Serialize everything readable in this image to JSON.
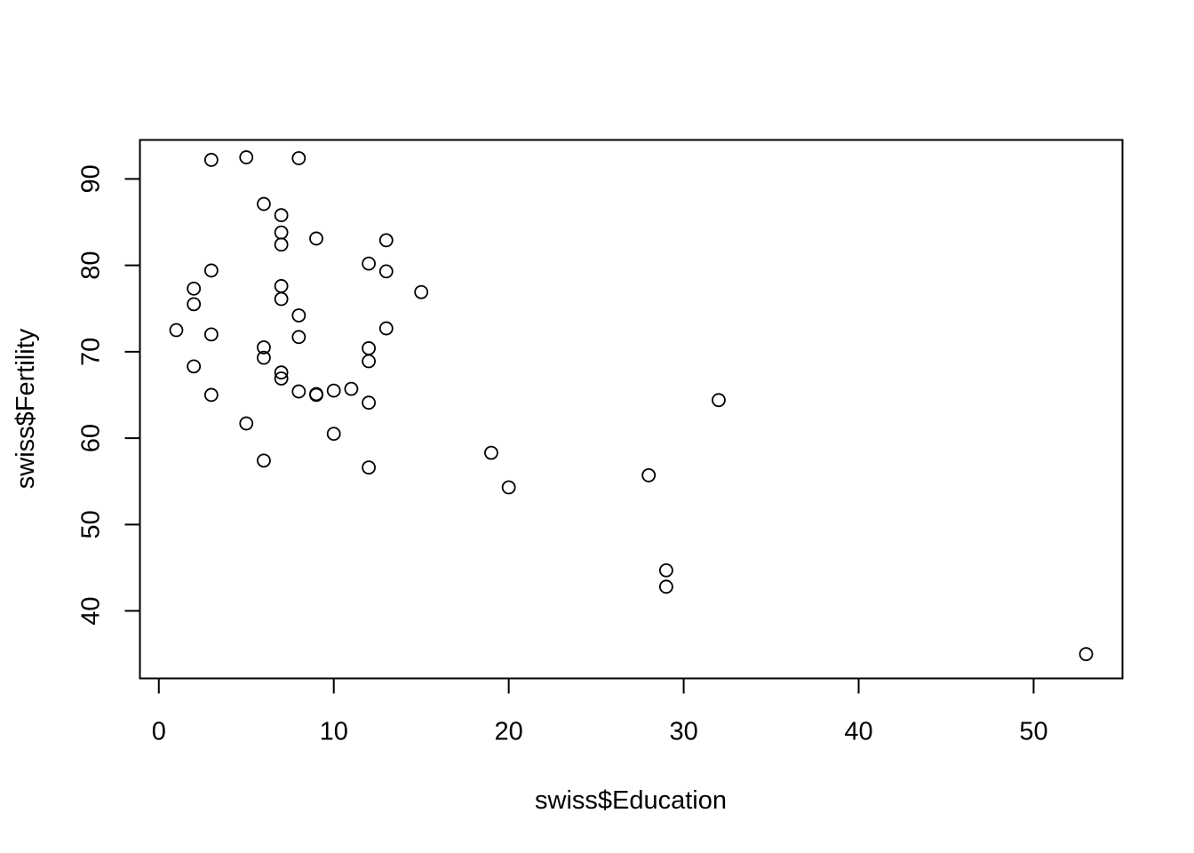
{
  "chart_data": {
    "type": "scatter",
    "title": "",
    "xlabel": "swiss$Education",
    "ylabel": "swiss$Fertility",
    "xlim": [
      -1.08,
      55.08
    ],
    "ylim": [
      32.19,
      94.51
    ],
    "x_ticks": [
      0,
      10,
      20,
      30,
      40,
      50
    ],
    "y_ticks": [
      40,
      50,
      60,
      70,
      80,
      90
    ],
    "grid": false,
    "legend": "none",
    "marker": "open-circle",
    "color": "#000000",
    "points": [
      {
        "x": 12,
        "y": 80.2
      },
      {
        "x": 9,
        "y": 83.1
      },
      {
        "x": 5,
        "y": 92.5
      },
      {
        "x": 7,
        "y": 85.8
      },
      {
        "x": 15,
        "y": 76.9
      },
      {
        "x": 7,
        "y": 76.1
      },
      {
        "x": 7,
        "y": 83.8
      },
      {
        "x": 8,
        "y": 92.4
      },
      {
        "x": 7,
        "y": 82.4
      },
      {
        "x": 13,
        "y": 82.9
      },
      {
        "x": 6,
        "y": 87.1
      },
      {
        "x": 12,
        "y": 64.1
      },
      {
        "x": 7,
        "y": 66.9
      },
      {
        "x": 12,
        "y": 68.9
      },
      {
        "x": 5,
        "y": 61.7
      },
      {
        "x": 2,
        "y": 68.3
      },
      {
        "x": 8,
        "y": 71.7
      },
      {
        "x": 28,
        "y": 55.7
      },
      {
        "x": 20,
        "y": 54.3
      },
      {
        "x": 9,
        "y": 65.1
      },
      {
        "x": 10,
        "y": 65.5
      },
      {
        "x": 3,
        "y": 65.0
      },
      {
        "x": 12,
        "y": 56.6
      },
      {
        "x": 6,
        "y": 57.4
      },
      {
        "x": 1,
        "y": 72.5
      },
      {
        "x": 8,
        "y": 74.2
      },
      {
        "x": 3,
        "y": 72.0
      },
      {
        "x": 10,
        "y": 60.5
      },
      {
        "x": 19,
        "y": 58.3
      },
      {
        "x": 8,
        "y": 65.4
      },
      {
        "x": 2,
        "y": 75.5
      },
      {
        "x": 6,
        "y": 69.3
      },
      {
        "x": 2,
        "y": 77.3
      },
      {
        "x": 6,
        "y": 70.5
      },
      {
        "x": 3,
        "y": 79.4
      },
      {
        "x": 9,
        "y": 65.0
      },
      {
        "x": 3,
        "y": 92.2
      },
      {
        "x": 13,
        "y": 79.3
      },
      {
        "x": 12,
        "y": 70.4
      },
      {
        "x": 11,
        "y": 65.7
      },
      {
        "x": 13,
        "y": 72.7
      },
      {
        "x": 7,
        "y": 77.6
      },
      {
        "x": 7,
        "y": 67.6
      },
      {
        "x": 53,
        "y": 35.0
      },
      {
        "x": 29,
        "y": 44.7
      },
      {
        "x": 29,
        "y": 42.8
      },
      {
        "x": 32,
        "y": 64.4
      }
    ]
  }
}
